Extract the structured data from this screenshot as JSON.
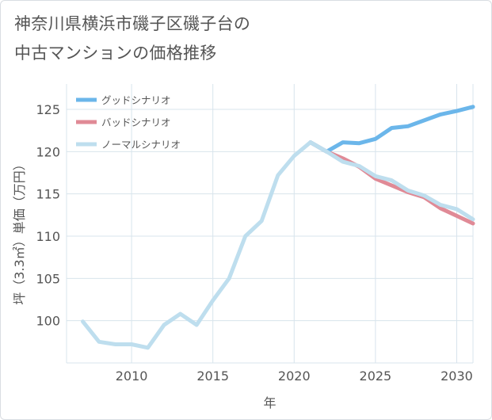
{
  "title_lines": [
    "神奈川県横浜市磯子区磯子台の",
    "中古マンションの価格推移"
  ],
  "chart_data": {
    "type": "line",
    "title": "神奈川県横浜市磯子区磯子台の中古マンションの価格推移",
    "xlabel": "年",
    "ylabel": "坪（3.3㎡）単価（万円）",
    "xlim": [
      2006,
      2031
    ],
    "ylim": [
      95,
      128
    ],
    "x_ticks": [
      2010,
      2015,
      2020,
      2025,
      2030
    ],
    "y_ticks": [
      100,
      105,
      110,
      115,
      120,
      125
    ],
    "grid": true,
    "legend_position": "top-left",
    "series": [
      {
        "name": "グッドシナリオ",
        "color": "#6bb6ea",
        "x": [
          2021,
          2022,
          2023,
          2024,
          2025,
          2026,
          2027,
          2028,
          2029,
          2030,
          2031
        ],
        "values": [
          121.1,
          120.0,
          121.1,
          121.0,
          121.5,
          122.8,
          123.0,
          123.7,
          124.4,
          124.8,
          125.3
        ]
      },
      {
        "name": "バッドシナリオ",
        "color": "#e08a96",
        "x": [
          2021,
          2022,
          2023,
          2024,
          2025,
          2026,
          2027,
          2028,
          2029,
          2030,
          2031
        ],
        "values": [
          121.1,
          120.0,
          119.2,
          118.2,
          116.8,
          116.0,
          115.2,
          114.6,
          113.3,
          112.4,
          111.5
        ]
      },
      {
        "name": "ノーマルシナリオ",
        "color": "#bedeee",
        "x": [
          2007,
          2008,
          2009,
          2010,
          2011,
          2012,
          2013,
          2014,
          2015,
          2016,
          2017,
          2018,
          2019,
          2020,
          2021,
          2022,
          2023,
          2024,
          2025,
          2026,
          2027,
          2028,
          2029,
          2030,
          2031
        ],
        "values": [
          99.9,
          97.5,
          97.2,
          97.2,
          96.8,
          99.5,
          100.8,
          99.5,
          102.4,
          105.0,
          110.0,
          111.8,
          117.2,
          119.5,
          121.1,
          120.0,
          118.8,
          118.3,
          117.1,
          116.6,
          115.4,
          114.8,
          113.7,
          113.2,
          112.0
        ]
      }
    ]
  }
}
